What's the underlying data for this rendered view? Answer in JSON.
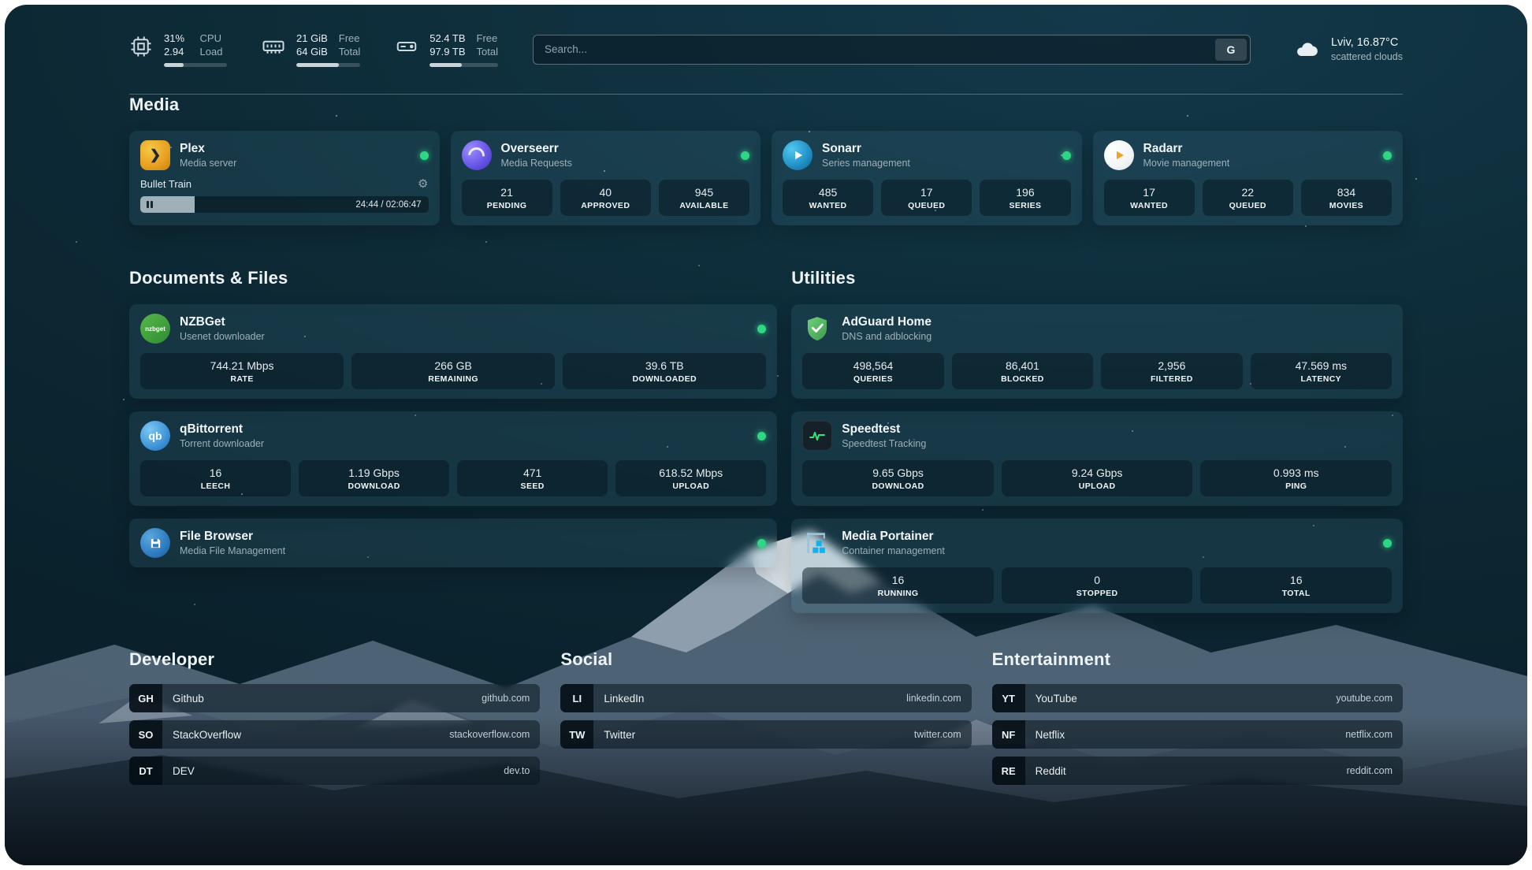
{
  "colors": {
    "status_green": "#2fd683",
    "background_teal": "#0d2a36",
    "plex_amber": "#e8a020",
    "overseerr_purple": "#6a57e8",
    "sonarr_blue": "#1f8fc4",
    "radarr_amber": "#f0a221",
    "nzbget_green": "#3f9a3f",
    "qbittorrent_blue": "#3e95d8",
    "adguard_green": "#4fae5c",
    "speedtest_green": "#35e07c",
    "filebrowser_blue": "#2e7cc0",
    "portainer_cyan": "#18b0e8"
  },
  "topbar": {
    "hardware": [
      {
        "name": "cpu",
        "value": "31%",
        "value2": "2.94",
        "label": "CPU",
        "label2": "Load",
        "progress_pct": 31
      },
      {
        "name": "memory",
        "value": "21 GiB",
        "value2": "64 GiB",
        "label": "Free",
        "label2": "Total",
        "progress_pct": 67
      },
      {
        "name": "storage",
        "value": "52.4 TB",
        "value2": "97.9 TB",
        "label": "Free",
        "label2": "Total",
        "progress_pct": 47
      }
    ],
    "search": {
      "placeholder": "Search...",
      "engine_button": "G"
    },
    "weather": {
      "location": "Lviv, 16.87°C",
      "condition": "scattered clouds"
    }
  },
  "sections": {
    "media": {
      "heading": "Media"
    },
    "documents": {
      "heading": "Documents & Files"
    },
    "utilities": {
      "heading": "Utilities"
    },
    "developer": {
      "heading": "Developer"
    },
    "social": {
      "heading": "Social"
    },
    "entertainment": {
      "heading": "Entertainment"
    }
  },
  "cards": {
    "plex": {
      "title": "Plex",
      "subtitle": "Media server",
      "icon_glyph": "❯",
      "now_playing": "Bullet Train",
      "time": "24:44 / 02:06:47",
      "progress_pct": 19
    },
    "overseerr": {
      "title": "Overseerr",
      "subtitle": "Media Requests",
      "stats": [
        {
          "value": "21",
          "label": "PENDING"
        },
        {
          "value": "40",
          "label": "APPROVED"
        },
        {
          "value": "945",
          "label": "AVAILABLE"
        }
      ]
    },
    "sonarr": {
      "title": "Sonarr",
      "subtitle": "Series management",
      "stats": [
        {
          "value": "485",
          "label": "WANTED"
        },
        {
          "value": "17",
          "label": "QUEUED"
        },
        {
          "value": "196",
          "label": "SERIES"
        }
      ]
    },
    "radarr": {
      "title": "Radarr",
      "subtitle": "Movie management",
      "stats": [
        {
          "value": "17",
          "label": "WANTED"
        },
        {
          "value": "22",
          "label": "QUEUED"
        },
        {
          "value": "834",
          "label": "MOVIES"
        }
      ]
    },
    "nzbget": {
      "title": "NZBGet",
      "subtitle": "Usenet downloader",
      "icon_text": "nzbget",
      "stats": [
        {
          "value": "744.21 Mbps",
          "label": "RATE"
        },
        {
          "value": "266 GB",
          "label": "REMAINING"
        },
        {
          "value": "39.6 TB",
          "label": "DOWNLOADED"
        }
      ]
    },
    "qbittorrent": {
      "title": "qBittorrent",
      "subtitle": "Torrent downloader",
      "icon_text": "qb",
      "stats": [
        {
          "value": "16",
          "label": "LEECH"
        },
        {
          "value": "1.19 Gbps",
          "label": "DOWNLOAD"
        },
        {
          "value": "471",
          "label": "SEED"
        },
        {
          "value": "618.52 Mbps",
          "label": "UPLOAD"
        }
      ]
    },
    "filebrowser": {
      "title": "File Browser",
      "subtitle": "Media File Management"
    },
    "adguard": {
      "title": "AdGuard Home",
      "subtitle": "DNS and adblocking",
      "stats": [
        {
          "value": "498,564",
          "label": "QUERIES"
        },
        {
          "value": "86,401",
          "label": "BLOCKED"
        },
        {
          "value": "2,956",
          "label": "FILTERED"
        },
        {
          "value": "47.569 ms",
          "label": "LATENCY"
        }
      ]
    },
    "speedtest": {
      "title": "Speedtest",
      "subtitle": "Speedtest Tracking",
      "stats": [
        {
          "value": "9.65 Gbps",
          "label": "DOWNLOAD"
        },
        {
          "value": "9.24 Gbps",
          "label": "UPLOAD"
        },
        {
          "value": "0.993 ms",
          "label": "PING"
        }
      ]
    },
    "portainer": {
      "title": "Media Portainer",
      "subtitle": "Container management",
      "stats": [
        {
          "value": "16",
          "label": "RUNNING"
        },
        {
          "value": "0",
          "label": "STOPPED"
        },
        {
          "value": "16",
          "label": "TOTAL"
        }
      ]
    }
  },
  "links": {
    "developer": [
      {
        "abbr": "GH",
        "name": "Github",
        "url": "github.com"
      },
      {
        "abbr": "SO",
        "name": "StackOverflow",
        "url": "stackoverflow.com"
      },
      {
        "abbr": "DT",
        "name": "DEV",
        "url": "dev.to"
      }
    ],
    "social": [
      {
        "abbr": "LI",
        "name": "LinkedIn",
        "url": "linkedin.com"
      },
      {
        "abbr": "TW",
        "name": "Twitter",
        "url": "twitter.com"
      }
    ],
    "entertainment": [
      {
        "abbr": "YT",
        "name": "YouTube",
        "url": "youtube.com"
      },
      {
        "abbr": "NF",
        "name": "Netflix",
        "url": "netflix.com"
      },
      {
        "abbr": "RE",
        "name": "Reddit",
        "url": "reddit.com"
      }
    ]
  }
}
